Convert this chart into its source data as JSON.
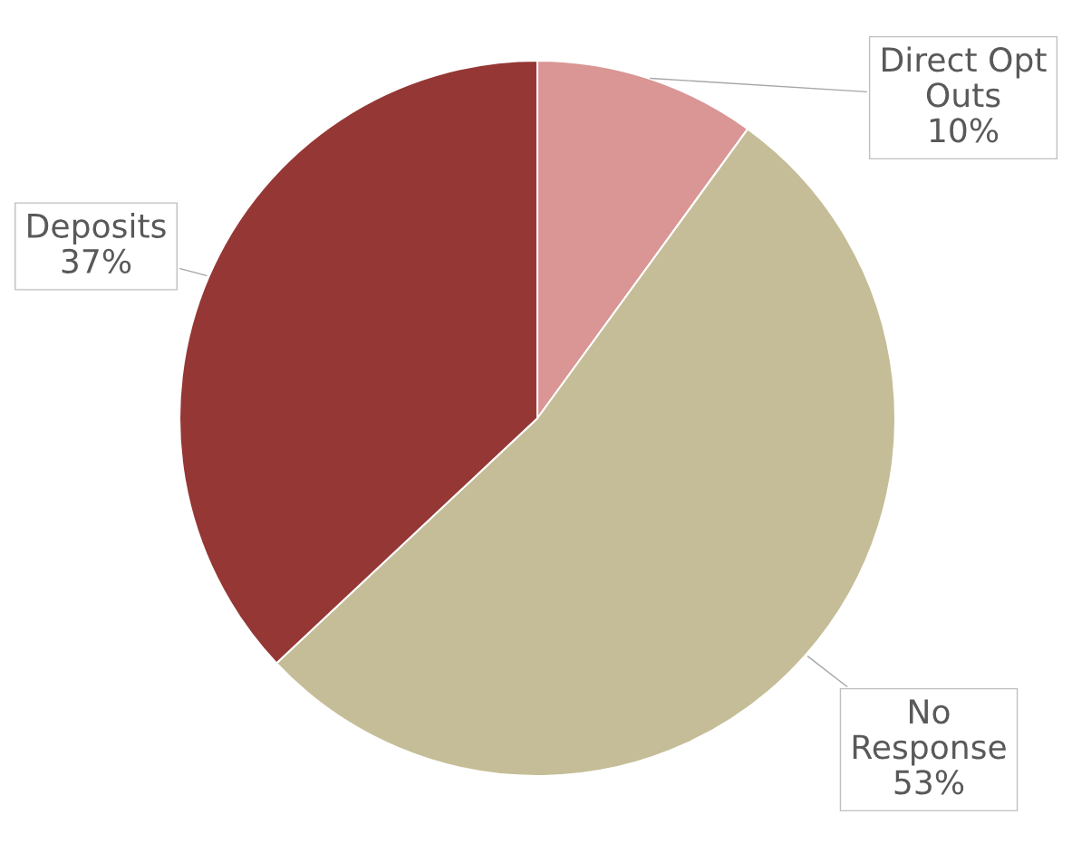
{
  "chart_data": {
    "type": "pie",
    "categories": [
      "Direct Opt Outs",
      "No Response",
      "Deposits"
    ],
    "values": [
      10,
      53,
      37
    ],
    "colors": [
      "#d99694",
      "#c4bd97",
      "#953735"
    ],
    "value_labels": [
      "10%",
      "53%",
      "37%"
    ]
  }
}
